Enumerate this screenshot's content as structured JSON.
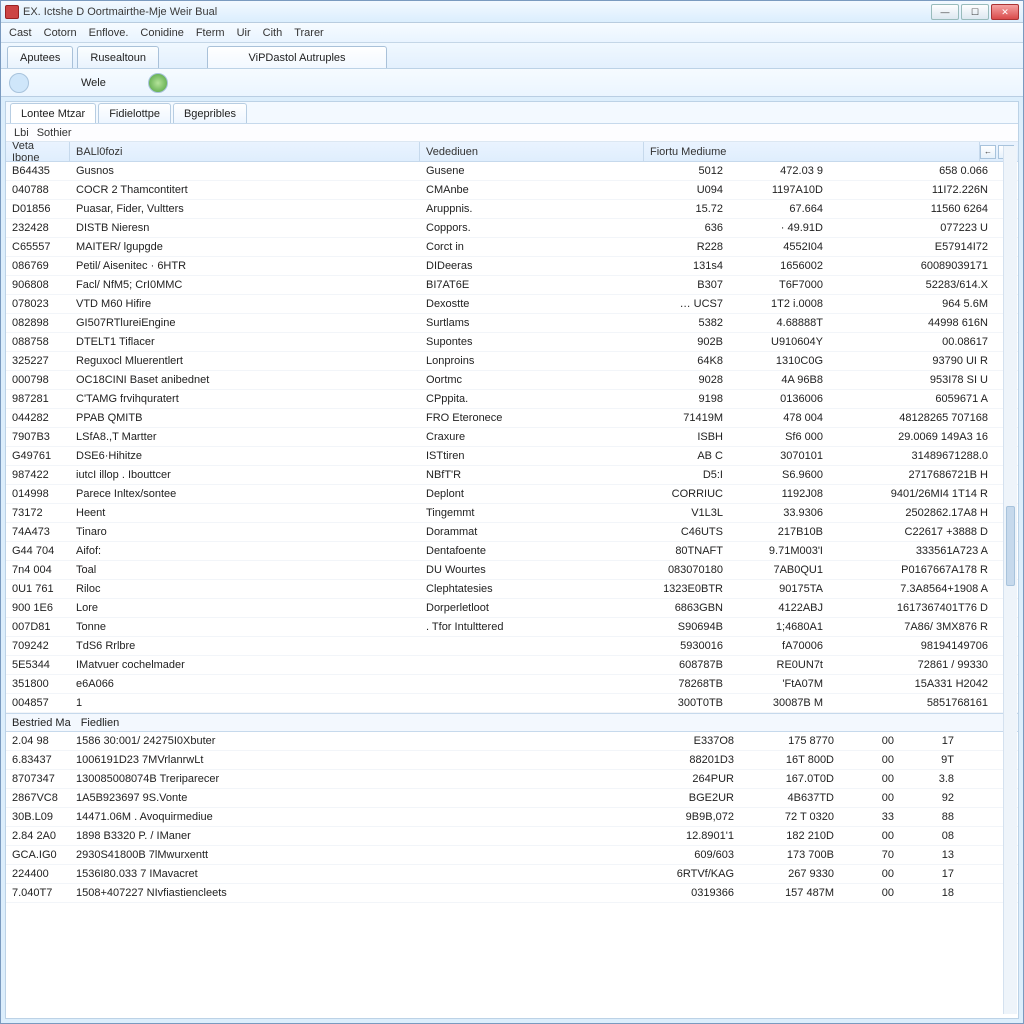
{
  "window": {
    "title": "EX. Ictshe D Oortmairthe-Mje Weir Bual"
  },
  "menu": [
    "Cast",
    "Cotorn",
    "Enflove.",
    "Conidine",
    "Fterm",
    "Uir",
    "Cith",
    "Trarer"
  ],
  "tabs1": [
    {
      "label": "Aputees"
    },
    {
      "label": "Rusealtoun"
    },
    {
      "label": "ViPDastol Autruples",
      "wide": true
    }
  ],
  "toolbar": {
    "label": "Wele"
  },
  "tabs2": [
    {
      "label": "Lontee Mtzar",
      "active": true
    },
    {
      "label": "Fidielottpe"
    },
    {
      "label": "Bgepribles"
    }
  ],
  "subbar": [
    "Lbi",
    "Sothier"
  ],
  "columns": {
    "code": "Veta Ibone",
    "name": "BALl0fozi",
    "ved": "Vedediuen",
    "n2": "Fiortu Mediume"
  },
  "rows": [
    {
      "c": "B64435",
      "n": "Gusnos",
      "v": "Gusene",
      "a": "5012",
      "b": "472.03 9",
      "d": "658 0.066"
    },
    {
      "c": "040788",
      "n": "COCR 2 Thamcontitert",
      "v": "CMAnbe",
      "a": "U094",
      "b": "1197A10D",
      "d": "11I72.226N"
    },
    {
      "c": "D01856",
      "n": "Puasar, Fider, Vultters",
      "v": "Aruppnis.",
      "a": "15.72",
      "b": "67.664",
      "d": "11560 6264"
    },
    {
      "c": "232428",
      "n": "DISTB Nieresn",
      "v": "Coppors.",
      "a": "636",
      "b": "· 49.91D",
      "d": "077223 U"
    },
    {
      "c": "C65557",
      "n": "MAITER/ lgupgde",
      "v": "Corct in",
      "a": "R228",
      "b": "4552I04",
      "d": "E57914I72"
    },
    {
      "c": "086769",
      "n": "Petil/ Aisenitec · 6HTR",
      "v": "DIDeeras",
      "a": "131s4",
      "b": "1656002",
      "d": "60089039171"
    },
    {
      "c": "906808",
      "n": "Facl/ NfM5; CrI0MMC",
      "v": "BI7AT6E",
      "a": "B307",
      "b": "T6F7000",
      "d": "52283/614.X"
    },
    {
      "c": "078023",
      "n": "VTD M60 Hifire",
      "v": "Dexostte",
      "a": "… UCS7",
      "b": "1T2 i.0008",
      "d": "964 5.6M"
    },
    {
      "c": "082898",
      "n": "GI507RTlureiEngine",
      "v": "Surtlams",
      "a": "5382",
      "b": "4.68888T",
      "d": "44998 616N"
    },
    {
      "c": "088758",
      "n": "DTELT1 Tiflacer",
      "v": "Supontes",
      "a": "902B",
      "b": "U910604Y",
      "d": "00.08617"
    },
    {
      "c": "325227",
      "n": "Reguxocl Mluerentlert",
      "v": "Lonproins",
      "a": "64K8",
      "b": "1310C0G",
      "d": "93790 UI R"
    },
    {
      "c": "000798",
      "n": "OC18CINI Baset anibednet",
      "v": "Oortmc",
      "a": "9028",
      "b": "4A 96B8",
      "d": "953I78 SI U"
    },
    {
      "c": "987281",
      "n": "C'TAMG frvihquratert",
      "v": "CPppita.",
      "a": "9198",
      "b": "0136006",
      "d": "6059671 A"
    },
    {
      "c": "044282",
      "n": "PPAB QMITB",
      "v": "FRO Eteronece",
      "a": "71419M",
      "b": "478 004",
      "d": "48128265 707168"
    },
    {
      "c": "7907B3",
      "n": "LSfA8.,T Martter",
      "v": "Craxure",
      "a": "ISBH",
      "b": "Sf6 000",
      "d": "29.0069 149A3 16"
    },
    {
      "c": "G49761",
      "n": "DSE6·Hihitze",
      "v": "ISTtiren",
      "a": "AB C",
      "b": "3070101",
      "d": "31489671288.0"
    },
    {
      "c": "987422",
      "n": "iutcI illop . Ibouttcer",
      "v": "NBfT'R",
      "a": "D5:I",
      "b": "S6.9600",
      "d": "2717686721B H"
    },
    {
      "c": "014998",
      "n": "Parece Inltex/sontee",
      "v": "Deplont",
      "a": "CORRIUC",
      "b": "1192J08",
      "d": "9401/26MI4 1T14 R"
    },
    {
      "c": "73172",
      "n": "Heent",
      "v": "Tingemmt",
      "a": "V1L3L",
      "b": "33.9306",
      "d": "2502862.17A8 H"
    },
    {
      "c": "74A473",
      "n": "Tinaro",
      "v": "Dorammat",
      "a": "C46UTS",
      "b": "217B10B",
      "d": "C22617 +3888 D"
    },
    {
      "c": "G44 704",
      "n": "Aifof:",
      "v": "Dentafoente",
      "a": "80TNAFT",
      "b": "9.71M003'I",
      "d": "333561A723 A"
    },
    {
      "c": "7n4 004",
      "n": "Toal",
      "v": "DU Wourtes",
      "a": "083070180",
      "b": "7AB0QU1",
      "d": "P0167667A178 R"
    },
    {
      "c": "0U1 761",
      "n": "Riloc",
      "v": "Clephtatesies",
      "a": "1323E0BTR",
      "b": "90175TA",
      "d": "7.3A8564+1908 A"
    },
    {
      "c": "900 1E6",
      "n": "Lore",
      "v": "Dorperletloot",
      "a": "6863GBN",
      "b": "4122ABJ",
      "d": "1617367401T76 D"
    },
    {
      "c": "007D81",
      "n": "Tonne",
      "v": ". Tfor Intulttered",
      "a": "S90694B",
      "b": "1;4680A1",
      "d": "7A86/ 3MX876 R"
    },
    {
      "c": "709242",
      "n": "TdS6 Rrlbre",
      "v": "",
      "a": "5930016",
      "b": "fA70006",
      "d": "98194149706"
    },
    {
      "c": "5E5344",
      "n": "IMatvuer cochelmader",
      "v": "",
      "a": "608787B",
      "b": "RE0UN7t",
      "d": "72861 / 99330"
    },
    {
      "c": "351800",
      "n": "e6A066",
      "v": "",
      "a": "78268TB",
      "b": "'FtA07M",
      "d": "15A331 H2042"
    },
    {
      "c": "004857",
      "n": "1",
      "v": "",
      "a": "300T0TB",
      "b": "30087B M",
      "d": "5851768161"
    }
  ],
  "section": {
    "a": "Bestried Ma",
    "b": "Fiedlien"
  },
  "rows2": [
    {
      "a": "2.04 98",
      "b": "1586 30:001/ 24275I0Xbuter",
      "c": "E337O8",
      "d": "175 8770",
      "e": "00",
      "f": "17"
    },
    {
      "a": "6.83437",
      "b": "1006191D23 7MVrlanrwLt",
      "c": "88201D3",
      "d": "16T 800D",
      "e": "00",
      "f": "9T"
    },
    {
      "a": "8707347",
      "b": "130085008074B Treriparecer",
      "c": "264PUR",
      "d": "167.0T0D",
      "e": "00",
      "f": "3.8"
    },
    {
      "a": "2867VC8",
      "b": "1A5B923697 9S.Vonte",
      "c": "BGE2UR",
      "d": "4B637TD",
      "e": "00",
      "f": "92"
    },
    {
      "a": "30B.L09",
      "b": "14471.06M . Avoquirmediue",
      "c": "9B9B,072",
      "d": "72 T 0320",
      "e": "33",
      "f": "88"
    },
    {
      "a": "2.84 2A0",
      "b": "1898 B3320 P. / IManer",
      "c": "12.8901'1",
      "d": "182 210D",
      "e": "00",
      "f": "08"
    },
    {
      "a": "GCA.IG0",
      "b": "2930S41800B 7lMwurxentt",
      "c": "609/603",
      "d": "173 700B",
      "e": "70",
      "f": "13"
    },
    {
      "a": "224400",
      "b": "1536I80.033 7 IMavacret",
      "c": "6RTVf/KAG",
      "d": "267 9330",
      "e": "00",
      "f": "17"
    },
    {
      "a": "7.040T7",
      "b": "1508+407227 NIvfiastiencleets",
      "c": "0319366",
      "d": "157 487M",
      "e": "00",
      "f": "18"
    }
  ]
}
